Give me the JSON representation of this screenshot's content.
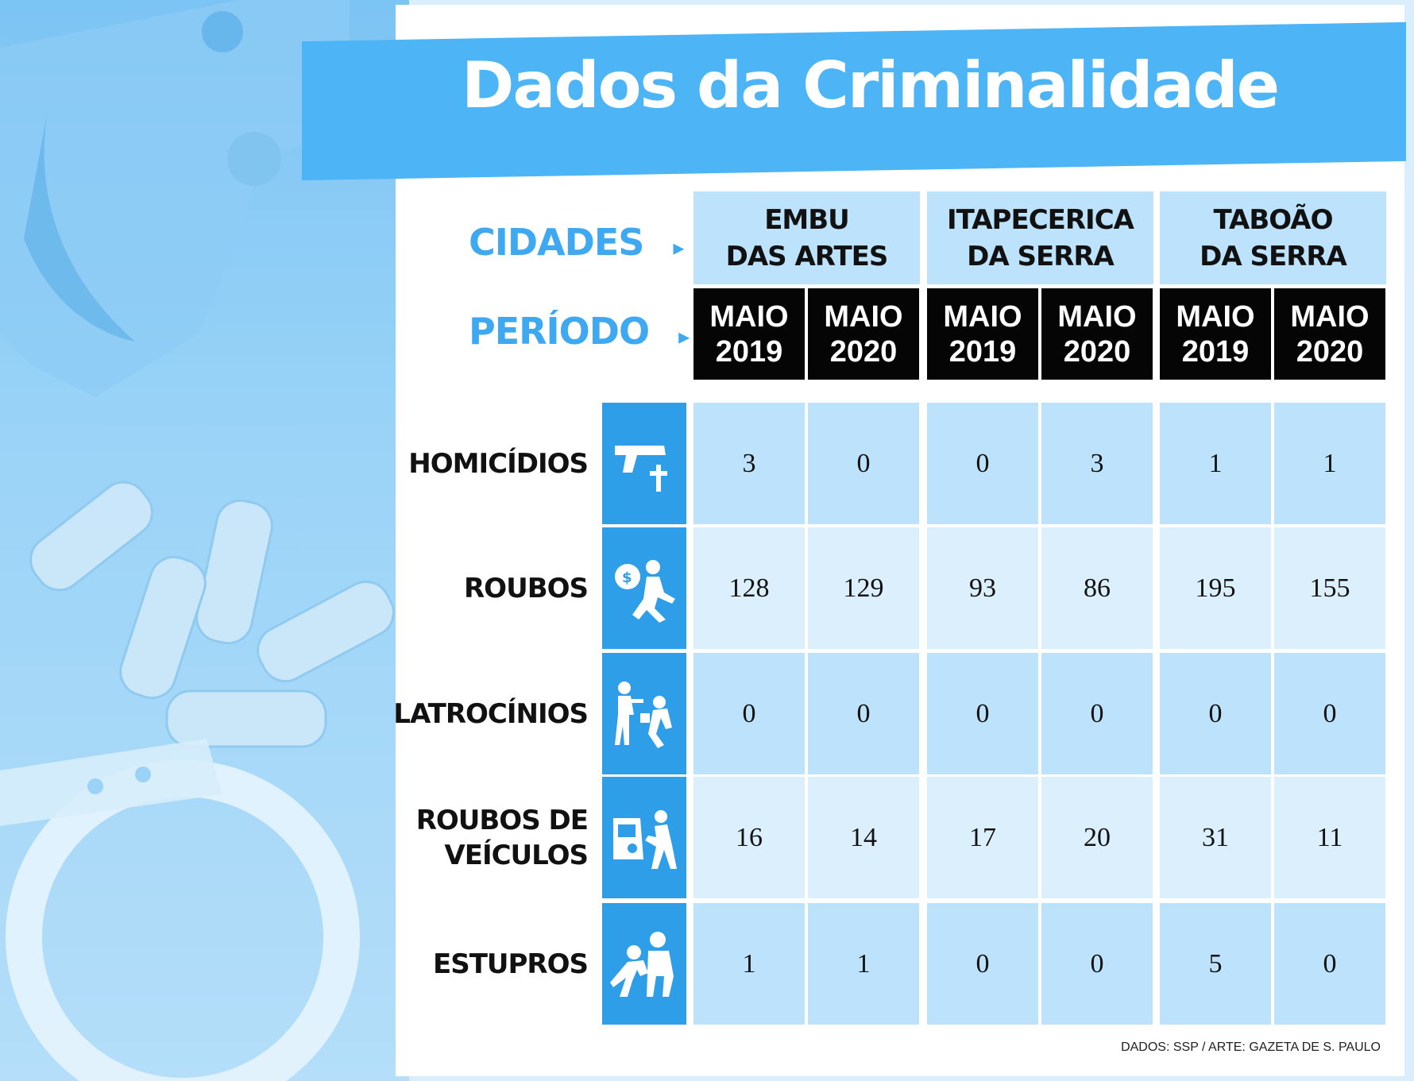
{
  "title": "Dados da Criminalidade",
  "headers": {
    "cidades_label": "CIDADES",
    "periodo_label": "PERÍODO",
    "arrow": "▸"
  },
  "source": "DADOS: SSP / ARTE: GAZETA DE S. PAULO",
  "colors": {
    "accent": "#4db4f6",
    "header_cell": "#bde2fb",
    "period_cell": "#050505",
    "icon_box": "#2f9ee8",
    "row_light": "#dbeffd",
    "row_dark": "#bde2fb"
  },
  "chart_data": {
    "type": "table",
    "title": "Dados da Criminalidade",
    "cities": [
      {
        "line1": "EMBU",
        "line2": "DAS ARTES"
      },
      {
        "line1": "ITAPECERICA",
        "line2": "DA SERRA"
      },
      {
        "line1": "TABOÃO",
        "line2": "DA SERRA"
      }
    ],
    "periods": [
      {
        "month": "MAIO",
        "year": "2019"
      },
      {
        "month": "MAIO",
        "year": "2020"
      },
      {
        "month": "MAIO",
        "year": "2019"
      },
      {
        "month": "MAIO",
        "year": "2020"
      },
      {
        "month": "MAIO",
        "year": "2019"
      },
      {
        "month": "MAIO",
        "year": "2020"
      }
    ],
    "rows": [
      {
        "label": [
          "HOMICÍDIOS"
        ],
        "icon": "gun-cross-icon",
        "values": [
          3,
          0,
          0,
          3,
          1,
          1
        ]
      },
      {
        "label": [
          "ROUBOS"
        ],
        "icon": "robber-money-bag-icon",
        "values": [
          128,
          129,
          93,
          86,
          195,
          155
        ]
      },
      {
        "label": [
          "LATROCÍNIOS"
        ],
        "icon": "shooting-victim-icon",
        "values": [
          0,
          0,
          0,
          0,
          0,
          0
        ]
      },
      {
        "label": [
          "ROUBOS DE",
          "VEÍCULOS"
        ],
        "icon": "car-theft-icon",
        "values": [
          16,
          14,
          17,
          20,
          31,
          11
        ]
      },
      {
        "label": [
          "ESTUPROS"
        ],
        "icon": "assault-icon",
        "values": [
          1,
          1,
          0,
          0,
          5,
          0
        ]
      }
    ]
  }
}
